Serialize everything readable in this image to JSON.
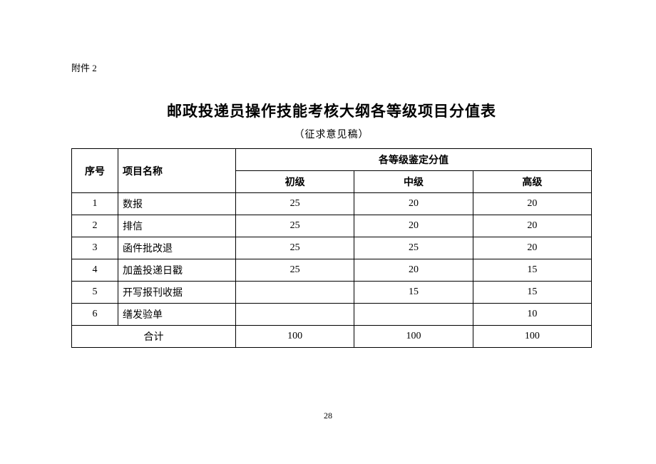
{
  "appendix_label": "附件 2",
  "title": "邮政投递员操作技能考核大纲各等级项目分值表",
  "subtitle": "（征求意见稿）",
  "headers": {
    "seq": "序号",
    "name": "项目名称",
    "group": "各等级鉴定分值",
    "levels": [
      "初级",
      "中级",
      "高级"
    ]
  },
  "rows": [
    {
      "seq": "1",
      "name": "数报",
      "vals": [
        "25",
        "20",
        "20"
      ]
    },
    {
      "seq": "2",
      "name": "排信",
      "vals": [
        "25",
        "20",
        "20"
      ]
    },
    {
      "seq": "3",
      "name": "函件批改退",
      "vals": [
        "25",
        "25",
        "20"
      ]
    },
    {
      "seq": "4",
      "name": "加盖投递日戳",
      "vals": [
        "25",
        "20",
        "15"
      ]
    },
    {
      "seq": "5",
      "name": "开写报刊收据",
      "vals": [
        "",
        "15",
        "15"
      ]
    },
    {
      "seq": "6",
      "name": "缮发验单",
      "vals": [
        "",
        "",
        "10"
      ]
    }
  ],
  "total": {
    "label": "合计",
    "vals": [
      "100",
      "100",
      "100"
    ]
  },
  "page_number": "28"
}
